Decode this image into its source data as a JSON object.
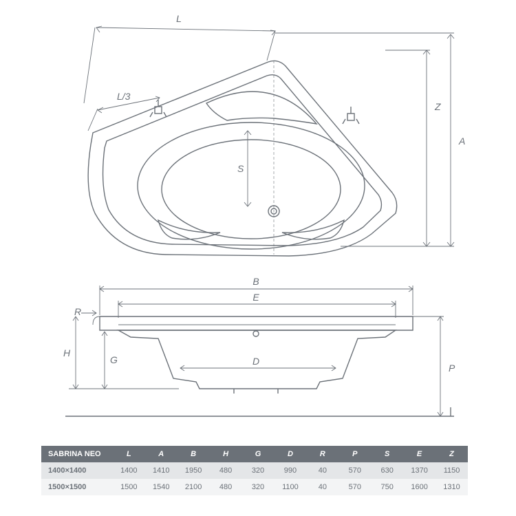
{
  "diagram": {
    "stroke_color": "#6b7178",
    "stroke_width": 1.4,
    "thin_stroke_width": 0.9,
    "font_family": "Arial",
    "label_fontsize": 14,
    "label_color": "#6b7178",
    "top_view": {
      "labels": {
        "L": "L",
        "L3": "L/3",
        "A": "A",
        "Z": "Z",
        "S": "S"
      }
    },
    "side_view": {
      "labels": {
        "B": "B",
        "E": "E",
        "R": "R",
        "H": "H",
        "G": "G",
        "D": "D",
        "P": "P"
      }
    }
  },
  "table": {
    "header_bg": "#6b7178",
    "header_fg": "#ffffff",
    "row_bg": [
      "#e4e6e8",
      "#f3f4f5"
    ],
    "text_color": "#6b7178",
    "title": "SABRINA NEO",
    "columns": [
      "L",
      "A",
      "B",
      "H",
      "G",
      "D",
      "R",
      "P",
      "S",
      "E",
      "Z"
    ],
    "rows": [
      {
        "name": "1400×1400",
        "values": [
          "1400",
          "1410",
          "1950",
          "480",
          "320",
          "990",
          "40",
          "570",
          "630",
          "1370",
          "1150"
        ]
      },
      {
        "name": "1500×1500",
        "values": [
          "1500",
          "1540",
          "2100",
          "480",
          "320",
          "1100",
          "40",
          "570",
          "750",
          "1600",
          "1310"
        ]
      }
    ]
  }
}
